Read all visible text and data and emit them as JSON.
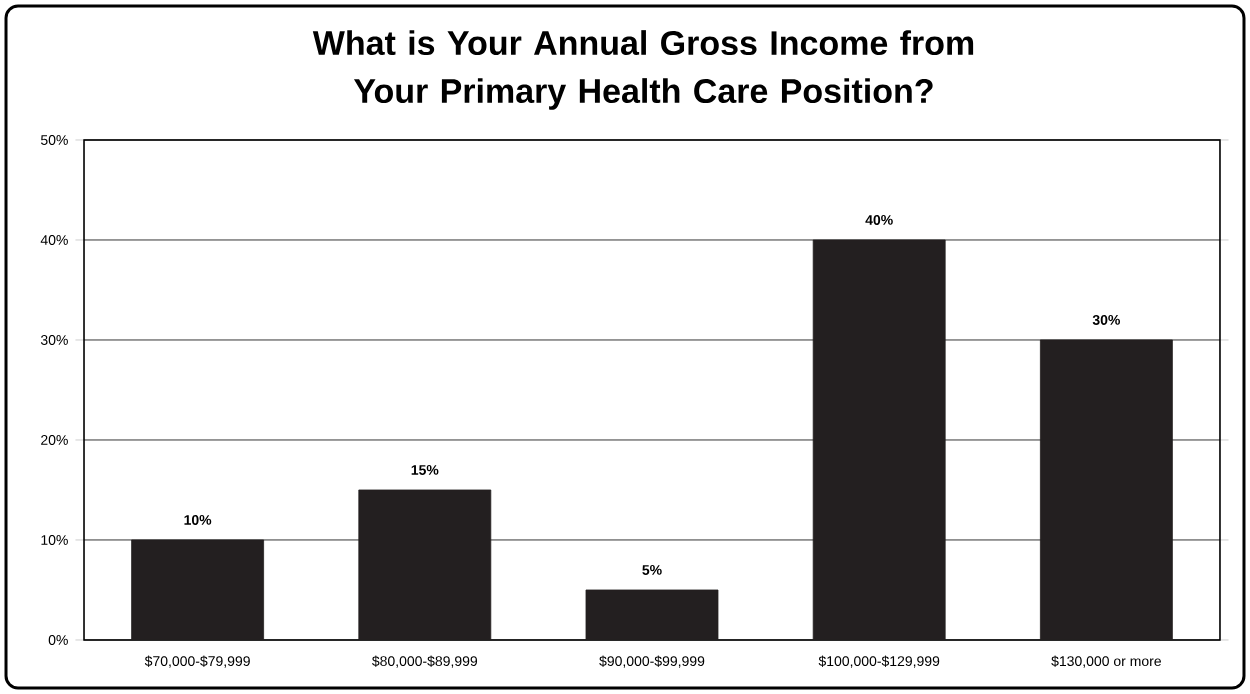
{
  "chart_data": {
    "type": "bar",
    "title": "What is Your Annual Gross Income from Your Primary Health Care Position?",
    "categories": [
      "$70,000-$79,999",
      "$80,000-$89,999",
      "$90,000-$99,999",
      "$100,000-$129,999",
      "$130,000 or more"
    ],
    "values": [
      10,
      15,
      5,
      40,
      30
    ],
    "color": "#231f20",
    "value_labels": [
      "10%",
      "15%",
      "5%",
      "40%",
      "30%"
    ],
    "ylim": [
      0,
      50
    ],
    "yticks": [
      {
        "value": 0,
        "label": "0%"
      },
      {
        "value": 10,
        "label": "10%"
      },
      {
        "value": 20,
        "label": "20%"
      },
      {
        "value": 30,
        "label": "30%"
      },
      {
        "value": 40,
        "label": "40%"
      },
      {
        "value": 50,
        "label": "50%"
      }
    ],
    "grid": "y"
  }
}
